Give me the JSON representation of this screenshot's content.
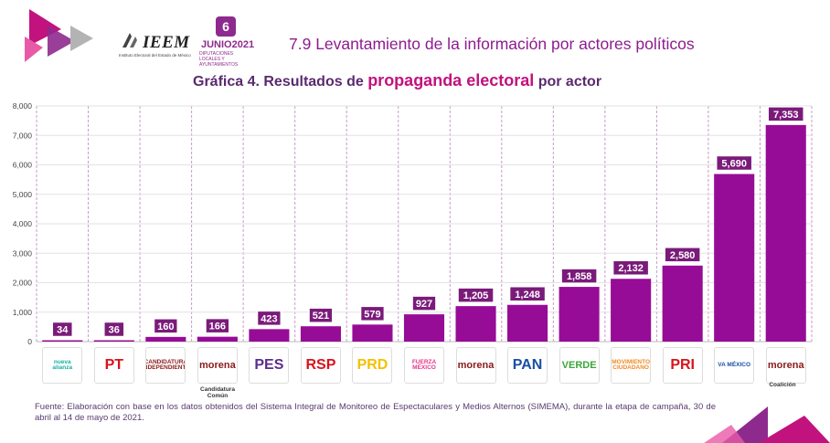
{
  "header": {
    "section_title": "7.9 Levantamiento de la información por actores políticos",
    "ieem_label": "IEEM",
    "ieem_subtitle": "Instituto Electoral del Estado de México",
    "junio_badge": "6",
    "junio_label": "JUNIO2021",
    "junio_subtitle": "DIPUTACIONES LOCALES Y AYUNTAMIENTOS"
  },
  "chart_title": {
    "prefix": "Gráfica 4. Resultados de",
    "highlight": "propaganda electoral",
    "suffix": "por actor"
  },
  "chart_data": {
    "type": "bar",
    "categories": [
      "Nueva Alianza",
      "PT",
      "Candidatura Independiente",
      "Candidatura Común",
      "PES",
      "RSP",
      "PRD",
      "Fuerza por México",
      "morena",
      "PAN",
      "Verde",
      "Movimiento Ciudadano",
      "PRI",
      "Va por México",
      "Coalición"
    ],
    "values": [
      34,
      36,
      160,
      166,
      423,
      521,
      579,
      927,
      1205,
      1248,
      1858,
      2132,
      2580,
      5690,
      7353
    ],
    "data_labels": [
      "34",
      "36",
      "160",
      "166",
      "423",
      "521",
      "579",
      "927",
      "1,205",
      "1,248",
      "1,858",
      "2,132",
      "2,580",
      "5,690",
      "7,353"
    ],
    "ylim": [
      0,
      8000
    ],
    "yticks": [
      "0",
      "1,000",
      "2,000",
      "3,000",
      "4,000",
      "5,000",
      "6,000",
      "7,000",
      "8,000"
    ],
    "grid": true,
    "colors": {
      "bar": "#970c97",
      "label_bg": "#7a1b7a",
      "grid_stripe": "#c99bc9"
    }
  },
  "logos": [
    {
      "text": "nueva alianza",
      "icon": "nueva-alianza-logo",
      "color": "#17b0a0"
    },
    {
      "text": "PT",
      "icon": "pt-logo",
      "color": "#d9121b"
    },
    {
      "text": "CANDIDATURA INDEPENDIENTE",
      "icon": "independiente-logo",
      "color": "#8b1a1a"
    },
    {
      "text": "morena",
      "icon": "candidatura-comun-logo",
      "color": "#8b1a1a"
    },
    {
      "text": "PES",
      "icon": "pes-logo",
      "color": "#5b2d8e"
    },
    {
      "text": "RSP",
      "icon": "rsp-logo",
      "color": "#d9121b"
    },
    {
      "text": "PRD",
      "icon": "prd-logo",
      "color": "#f2c200"
    },
    {
      "text": "FUERZA MÉXICO",
      "icon": "fuerza-mexico-logo",
      "color": "#e5378a"
    },
    {
      "text": "morena",
      "icon": "morena-logo",
      "color": "#8b1a1a"
    },
    {
      "text": "PAN",
      "icon": "pan-logo",
      "color": "#1a4fa3"
    },
    {
      "text": "VERDE",
      "icon": "verde-logo",
      "color": "#3aa63a"
    },
    {
      "text": "MOVIMIENTO CIUDADANO",
      "icon": "mc-logo",
      "color": "#f08a24"
    },
    {
      "text": "PRI",
      "icon": "pri-logo",
      "color": "#d9121b"
    },
    {
      "text": "VA MÉXICO",
      "icon": "va-por-mexico-logo",
      "color": "#1a4fa3"
    },
    {
      "text": "morena",
      "icon": "coalicion-logo",
      "color": "#8b1a1a"
    }
  ],
  "logo_captions": {
    "candidatura_comun": "Candidatura Común",
    "coalicion": "Coalición"
  },
  "source_note": "Fuente: Elaboración con base en los datos obtenidos del Sistema Integral de Monitoreo de Espectaculares y Medios Alternos (SIMEMA), durante la etapa de campaña, 30 de abril al 14 de mayo de 2021."
}
